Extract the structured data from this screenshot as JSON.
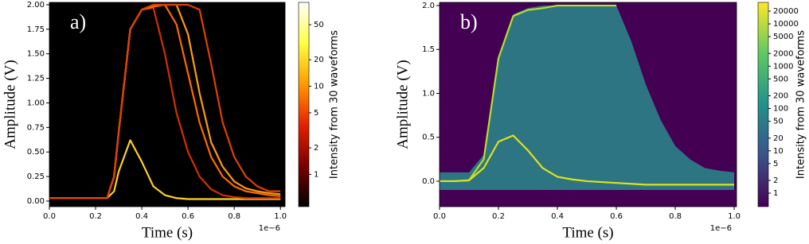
{
  "chart_data": [
    {
      "type": "density",
      "panel_label": "a)",
      "x_label": "Time (s)",
      "y_label": "Amplitude (V)",
      "x_offset_label": "1e−6",
      "background": "#000000",
      "xlim": [
        0,
        1.02
      ],
      "ylim": [
        -0.057,
        2.024
      ],
      "xticks": [
        {
          "value": 0,
          "label": "0.0"
        },
        {
          "value": 0.2,
          "label": "0.2"
        },
        {
          "value": 0.4,
          "label": "0.4"
        },
        {
          "value": 0.6,
          "label": "0.6"
        },
        {
          "value": 0.8,
          "label": "0.8"
        },
        {
          "value": 1,
          "label": "1.0"
        }
      ],
      "yticks": [
        {
          "value": 0,
          "label": "0.00"
        },
        {
          "value": 0.25,
          "label": "0.25"
        },
        {
          "value": 0.5,
          "label": "0.50"
        },
        {
          "value": 0.75,
          "label": "0.75"
        },
        {
          "value": 1,
          "label": "1.00"
        },
        {
          "value": 1.25,
          "label": "1.25"
        },
        {
          "value": 1.5,
          "label": "1.50"
        },
        {
          "value": 1.75,
          "label": "1.75"
        },
        {
          "value": 2,
          "label": "2.00"
        }
      ],
      "x": [
        0,
        0.1,
        0.2,
        0.25,
        0.28,
        0.3,
        0.35,
        0.4,
        0.45,
        0.5,
        0.55,
        0.6,
        0.65,
        0.7,
        0.75,
        0.8,
        0.85,
        0.9,
        0.95,
        1.0
      ],
      "series": [
        {
          "color": "#ffd21f",
          "values": [
            0.03,
            0.03,
            0.03,
            0.03,
            0.1,
            0.3,
            0.62,
            0.4,
            0.15,
            0.06,
            0.03,
            0.02,
            0.02,
            0.02,
            0.02,
            0.02,
            0.02,
            0.02,
            0.02,
            0.02
          ]
        },
        {
          "color": "#d43000",
          "values": [
            0.03,
            0.03,
            0.03,
            0.03,
            0.25,
            0.7,
            1.75,
            1.95,
            1.97,
            1.5,
            0.9,
            0.5,
            0.25,
            0.12,
            0.06,
            0.04,
            0.03,
            0.03,
            0.03,
            0.03
          ]
        },
        {
          "color": "#ff6a00",
          "values": [
            0.03,
            0.03,
            0.03,
            0.03,
            0.25,
            0.7,
            1.75,
            1.95,
            1.98,
            2.0,
            1.8,
            1.3,
            0.8,
            0.45,
            0.25,
            0.15,
            0.1,
            0.08,
            0.06,
            0.05
          ]
        },
        {
          "color": "#ff9a10",
          "values": [
            0.03,
            0.03,
            0.03,
            0.03,
            0.25,
            0.7,
            1.75,
            1.95,
            2.0,
            2.0,
            2.0,
            1.7,
            1.1,
            0.6,
            0.35,
            0.2,
            0.13,
            0.1,
            0.08,
            0.07
          ]
        },
        {
          "color": "#e04000",
          "values": [
            0.03,
            0.03,
            0.03,
            0.03,
            0.25,
            0.7,
            1.75,
            1.95,
            2.0,
            2.0,
            2.0,
            2.0,
            1.95,
            1.4,
            0.8,
            0.45,
            0.25,
            0.15,
            0.1,
            0.1
          ]
        }
      ],
      "colorbar": {
        "label": "Intensity from 30 waveforms",
        "log": true,
        "clim": [
          0.43,
          89.6
        ],
        "colormap": [
          "#000000",
          "#7a0000",
          "#e62000",
          "#ff9a00",
          "#ffff40",
          "#ffffff"
        ],
        "ticks": [
          1,
          2,
          5,
          10,
          20,
          50
        ]
      }
    },
    {
      "type": "density",
      "panel_label": "b)",
      "x_label": "Time (s)",
      "y_label": "Amplitude (V)",
      "x_offset_label": "1e−6",
      "background": "#440154",
      "xlim": [
        0,
        1.008
      ],
      "ylim": [
        -0.29,
        2.036
      ],
      "xticks": [
        {
          "value": 0,
          "label": "0.0"
        },
        {
          "value": 0.2,
          "label": "0.2"
        },
        {
          "value": 0.4,
          "label": "0.4"
        },
        {
          "value": 0.6,
          "label": "0.6"
        },
        {
          "value": 0.8,
          "label": "0.8"
        },
        {
          "value": 1,
          "label": "1.0"
        }
      ],
      "yticks": [
        {
          "value": 0,
          "label": "0.0"
        },
        {
          "value": 0.5,
          "label": "0.5"
        },
        {
          "value": 1,
          "label": "1.0"
        },
        {
          "value": 1.5,
          "label": "1.5"
        },
        {
          "value": 2,
          "label": "2.0"
        }
      ],
      "x": [
        0,
        0.05,
        0.1,
        0.15,
        0.2,
        0.25,
        0.3,
        0.35,
        0.4,
        0.45,
        0.5,
        0.55,
        0.6,
        0.65,
        0.7,
        0.75,
        0.8,
        0.85,
        0.9,
        0.95,
        1.0
      ],
      "band": {
        "color": "#2a8a8c",
        "upper": [
          0.1,
          0.1,
          0.1,
          0.3,
          1.4,
          1.9,
          1.97,
          2.0,
          2.0,
          2.0,
          2.0,
          2.0,
          2.0,
          1.6,
          1.1,
          0.7,
          0.4,
          0.25,
          0.15,
          0.12,
          0.1
        ],
        "lower": [
          -0.1,
          -0.1,
          -0.1,
          -0.1,
          -0.1,
          -0.1,
          -0.1,
          -0.1,
          -0.1,
          -0.1,
          -0.1,
          -0.1,
          -0.1,
          -0.1,
          -0.1,
          -0.1,
          -0.1,
          -0.1,
          -0.1,
          -0.1,
          -0.1
        ]
      },
      "series": [
        {
          "color": "#b5de2b",
          "values": [
            0,
            0,
            0.01,
            0.25,
            1.4,
            1.88,
            1.95,
            1.97,
            2.0,
            2.0,
            2.0,
            2.0,
            2.0,
            null,
            null,
            null,
            null,
            null,
            null,
            null,
            null
          ]
        },
        {
          "color": "#dce319",
          "values": [
            0,
            0,
            0.01,
            0.15,
            0.45,
            0.52,
            0.35,
            0.15,
            0.05,
            0.02,
            0,
            -0.01,
            -0.02,
            -0.03,
            -0.04,
            -0.04,
            -0.04,
            -0.04,
            -0.04,
            -0.04,
            -0.04
          ]
        }
      ],
      "colorbar": {
        "label": "Intensity from 30 waveforms",
        "log": true,
        "clim": [
          0.48,
          32200
        ],
        "colormap": [
          "#440154",
          "#3b528b",
          "#21918c",
          "#5ec962",
          "#fde725"
        ],
        "ticks": [
          1,
          2,
          5,
          10,
          20,
          50,
          100,
          200,
          500,
          1000,
          2000,
          5000,
          10000,
          20000
        ]
      }
    }
  ]
}
